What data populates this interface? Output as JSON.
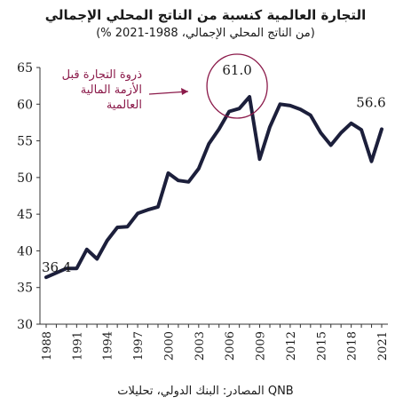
{
  "title": "التجارة العالمية كنسبة من الناتج المحلي الإجمالي",
  "subtitle": "(% من الناتج المحلي الإجمالي، 1988-2021)",
  "source": "المصادر: البنك الدولي، تحليلات QNB",
  "chart_data": {
    "type": "line",
    "title": "التجارة العالمية كنسبة من الناتج المحلي الإجمالي",
    "subtitle": "(% من الناتج المحلي الإجمالي، 1988-2021)",
    "xlabel": "",
    "ylabel": "",
    "ylim": [
      30,
      65
    ],
    "yticks": [
      30,
      35,
      40,
      45,
      50,
      55,
      60,
      65
    ],
    "xlim": [
      1988,
      2021
    ],
    "xticks": [
      1988,
      1991,
      1994,
      1997,
      2000,
      2003,
      2006,
      2009,
      2012,
      2015,
      2018,
      2021
    ],
    "grid": false,
    "line_color": "#1c1f3b",
    "annotation_color": "#8b1a4a",
    "series": [
      {
        "x": [
          1988,
          1989,
          1990,
          1991,
          1992,
          1993,
          1994,
          1995,
          1996,
          1997,
          1998,
          1999,
          2000,
          2001,
          2002,
          2003,
          2004,
          2005,
          2006,
          2007,
          2008,
          2009,
          2010,
          2011,
          2012,
          2013,
          2014,
          2015,
          2016,
          2017,
          2018,
          2019,
          2020,
          2021
        ],
        "values": [
          36.4,
          37.0,
          37.6,
          37.6,
          40.2,
          38.9,
          41.4,
          43.2,
          43.3,
          45.1,
          45.6,
          46.0,
          50.6,
          49.6,
          49.4,
          51.2,
          54.6,
          56.6,
          59.0,
          59.4,
          61.0,
          52.5,
          56.9,
          60.0,
          59.8,
          59.3,
          58.5,
          56.1,
          54.4,
          56.1,
          57.4,
          56.5,
          52.2,
          56.6
        ]
      }
    ],
    "data_labels": [
      {
        "x": 1988,
        "y": 36.4,
        "text": "36.4"
      },
      {
        "x": 2008,
        "y": 61.0,
        "text": "61.0"
      },
      {
        "x": 2021,
        "y": 56.6,
        "text": "56.6"
      }
    ],
    "annotation": {
      "lines": [
        "ذروة التجارة قبل",
        "الأزمة المالية",
        "العالمية"
      ]
    }
  }
}
